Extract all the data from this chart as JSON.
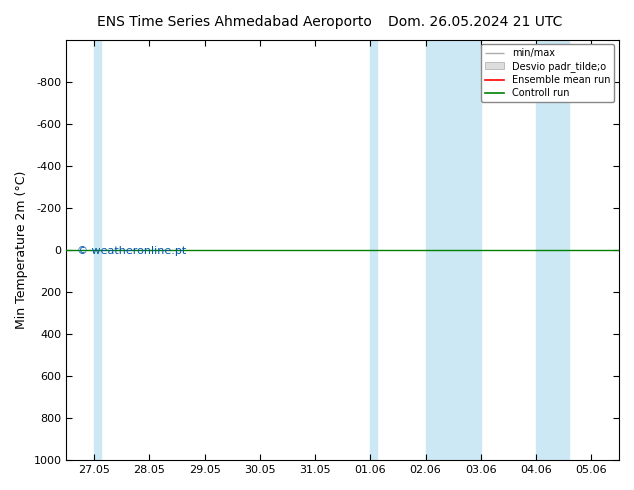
{
  "title_left": "ENS Time Series Ahmedabad Aeroporto",
  "title_right": "Dom. 26.05.2024 21 UTC",
  "ylabel": "Min Temperature 2m (°C)",
  "ylim_bottom": 1000,
  "ylim_top": -1000,
  "yticks": [
    -800,
    -600,
    -400,
    -200,
    0,
    200,
    400,
    600,
    800,
    1000
  ],
  "xtick_labels": [
    "27.05",
    "28.05",
    "29.05",
    "30.05",
    "31.05",
    "01.06",
    "02.06",
    "03.06",
    "04.06",
    "05.06"
  ],
  "shaded_bands": [
    [
      0.0,
      0.12
    ],
    [
      5.0,
      5.12
    ],
    [
      6.0,
      7.0
    ],
    [
      8.0,
      8.6
    ]
  ],
  "green_line_y": 0,
  "legend_labels": [
    "min/max",
    "Desvio padr_tilde;o",
    "Ensemble mean run",
    "Controll run"
  ],
  "legend_colors": [
    "#aaaaaa",
    "#cccccc",
    "#ff0000",
    "#008000"
  ],
  "watermark": "© weatheronline.pt",
  "watermark_color": "#0055aa",
  "bg_color": "#ffffff",
  "plot_bg_color": "#ffffff",
  "border_color": "#000000",
  "shaded_color": "#cde8f5",
  "xlim": [
    -0.5,
    9.5
  ],
  "title_fontsize": 10,
  "tick_fontsize": 8,
  "ylabel_fontsize": 9
}
